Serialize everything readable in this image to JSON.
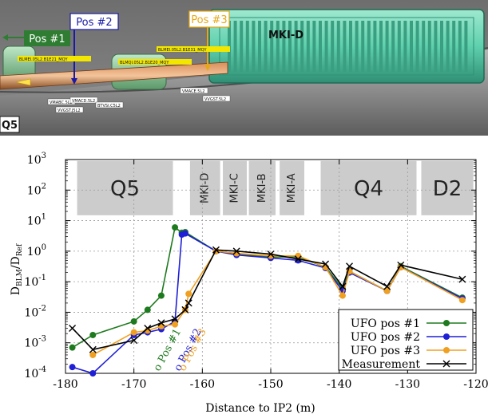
{
  "scene": {
    "pos_markers": [
      {
        "text": "Pos #1",
        "color": "#2e7d32"
      },
      {
        "text": "Pos #2",
        "color": "#1a1aa6"
      },
      {
        "text": "Pos #3",
        "color": "#e6a817"
      }
    ],
    "kicker_label": "MKI-D",
    "q5_label": "Q5",
    "blm_tags": [
      "BLMEI.05L2.B1E21_MQY",
      "BLMQI.05L2.B1E20_MQY",
      "BLMEI.05L2.B1E31_MQY"
    ],
    "element_tags": [
      "VMABC.5L2",
      "VMACD.5L2",
      "BTVSI.C5L2",
      "VMACE.5L2",
      "VVGST.5L2",
      "VVGST.J5L2"
    ]
  },
  "chart_data": {
    "type": "line",
    "xlabel": "Distance to IP2 (m)",
    "ylabel": "D_BLM/D_Ref",
    "ylabel_main": "D",
    "ylabel_sub1": "BLM",
    "ylabel_slash": "/D",
    "ylabel_sub2": "Ref",
    "xlim": [
      -180,
      -120
    ],
    "ylim": [
      0.0001,
      1000
    ],
    "yscale": "log",
    "grid": true,
    "legend_position": "bottom-right",
    "x_ticks": [
      -180,
      -170,
      -160,
      -150,
      -140,
      -130,
      -120
    ],
    "x_tick_labels": [
      "-180",
      "-170",
      "-160",
      "-150",
      "-140",
      "-130",
      "-120"
    ],
    "y_ticks": [
      0.0001,
      0.001,
      0.01,
      0.1,
      1,
      10,
      100,
      1000
    ],
    "y_tick_bases": [
      "10",
      "10",
      "10",
      "10",
      "10",
      "10",
      "10",
      "10"
    ],
    "y_tick_exps": [
      "-4",
      "-3",
      "-2",
      "-1",
      "0",
      "1",
      "2",
      "3"
    ],
    "regions": [
      {
        "label": "Q5",
        "x0": -178.3,
        "x1": -164.3,
        "size": "large"
      },
      {
        "label": "MKI-D",
        "x0": -161.8,
        "x1": -157.4,
        "size": "small"
      },
      {
        "label": "MKI-C",
        "x0": -157.0,
        "x1": -153.5,
        "size": "small"
      },
      {
        "label": "MKI-B",
        "x0": -153.2,
        "x1": -149.3,
        "size": "small"
      },
      {
        "label": "MKI-A",
        "x0": -148.7,
        "x1": -145.1,
        "size": "small"
      },
      {
        "label": "Q4",
        "x0": -142.7,
        "x1": -128.7,
        "size": "large"
      },
      {
        "label": "D2",
        "x0": -128.0,
        "x1": -120.4,
        "size": "large"
      }
    ],
    "series": [
      {
        "name": "UFO pos #1",
        "color": "#1e7a1e",
        "marker": "circle",
        "x": [
          -179,
          -176,
          -170,
          -168,
          -166,
          -164,
          -163,
          -162.5,
          -158,
          -155,
          -150,
          -146,
          -142,
          -139.5,
          -138.5,
          -133,
          -131,
          -122
        ],
        "y": [
          0.0007,
          0.0018,
          0.005,
          0.012,
          0.035,
          6.0,
          4.0,
          4.2,
          1.0,
          0.8,
          0.65,
          0.65,
          0.3,
          0.06,
          0.22,
          0.05,
          0.32,
          0.03
        ]
      },
      {
        "name": "UFO pos #2",
        "color": "#1f1fd6",
        "marker": "circle",
        "x": [
          -179,
          -176,
          -170,
          -168,
          -166,
          -164,
          -163,
          -162.5,
          -158,
          -155,
          -150,
          -146,
          -142,
          -139.5,
          -138.5,
          -133,
          -131,
          -122
        ],
        "y": [
          0.00016,
          0.0001,
          0.0018,
          0.0022,
          0.0028,
          0.005,
          3.5,
          3.8,
          1.0,
          0.75,
          0.6,
          0.5,
          0.28,
          0.05,
          0.2,
          0.05,
          0.3,
          0.028
        ]
      },
      {
        "name": "UFO pos #3",
        "color": "#f0a020",
        "marker": "circle",
        "x": [
          -176,
          -170,
          -168,
          -166,
          -164,
          -162.5,
          -162,
          -158,
          -155,
          -150,
          -146,
          -142,
          -139.5,
          -138.5,
          -133,
          -131,
          -122
        ],
        "y": [
          0.0004,
          0.0022,
          0.0025,
          0.0035,
          0.004,
          0.012,
          0.04,
          1.0,
          0.85,
          0.7,
          0.7,
          0.3,
          0.035,
          0.22,
          0.05,
          0.3,
          0.025
        ]
      },
      {
        "name": "Measurement",
        "color": "#000000",
        "marker": "x",
        "x": [
          -179,
          -176,
          -170,
          -168,
          -166,
          -164,
          -162.5,
          -162,
          -158,
          -155,
          -150,
          -146,
          -142,
          -139.5,
          -138.5,
          -133,
          -131,
          -122
        ],
        "y": [
          0.003,
          0.0006,
          0.0012,
          0.003,
          0.0045,
          0.006,
          0.012,
          0.02,
          1.1,
          1.0,
          0.8,
          0.55,
          0.38,
          0.07,
          0.32,
          0.07,
          0.35,
          0.12
        ]
      }
    ],
    "annotations": [
      {
        "text": "o Pos #1",
        "color": "#1e7a1e",
        "x": -166.3,
        "y": 0.0001
      },
      {
        "text": "o Pos #2",
        "color": "#1f1fd6",
        "x": -163.3,
        "y": 0.0001
      },
      {
        "text": "o Pos #3",
        "color": "#f0a020",
        "x": -162.6,
        "y": 0.0001
      }
    ]
  }
}
